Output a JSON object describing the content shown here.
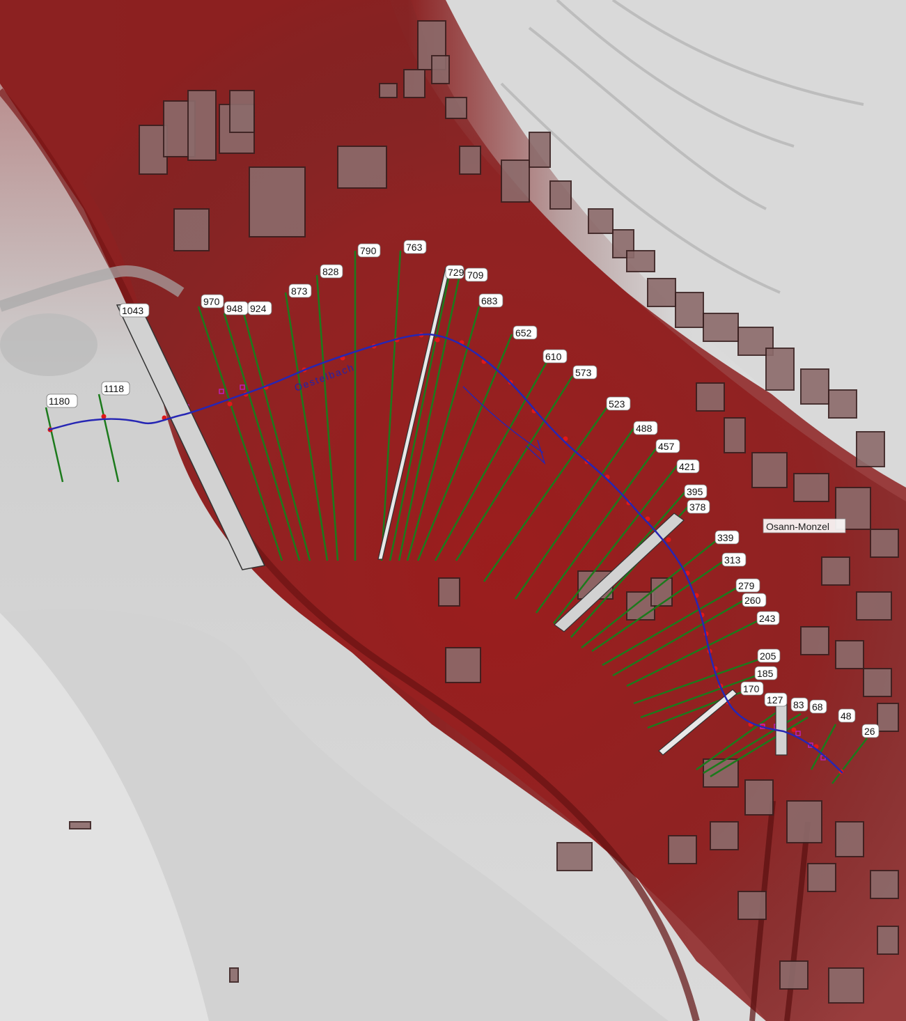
{
  "map": {
    "river_label": "Oestelbach",
    "town_label": "Osann-Monzel",
    "colors": {
      "terrain_low": "#8b1d1d",
      "terrain_high": "#e6e6e6",
      "river_line": "#2020a0",
      "cross_section_line": "#1c7a1c",
      "cross_section_point": "#e01818",
      "structure_fill": "#d0d0d0",
      "label_bg": "#ffffff"
    },
    "cross_sections": [
      {
        "station": "1180"
      },
      {
        "station": "1118"
      },
      {
        "station": "1043"
      },
      {
        "station": "970"
      },
      {
        "station": "948"
      },
      {
        "station": "924"
      },
      {
        "station": "873"
      },
      {
        "station": "828"
      },
      {
        "station": "790"
      },
      {
        "station": "763"
      },
      {
        "station": "729"
      },
      {
        "station": "709"
      },
      {
        "station": "683"
      },
      {
        "station": "652"
      },
      {
        "station": "610"
      },
      {
        "station": "573"
      },
      {
        "station": "523"
      },
      {
        "station": "488"
      },
      {
        "station": "457"
      },
      {
        "station": "421"
      },
      {
        "station": "395"
      },
      {
        "station": "378"
      },
      {
        "station": "339"
      },
      {
        "station": "313"
      },
      {
        "station": "279"
      },
      {
        "station": "260"
      },
      {
        "station": "243"
      },
      {
        "station": "205"
      },
      {
        "station": "185"
      },
      {
        "station": "170"
      },
      {
        "station": "127"
      },
      {
        "station": "83"
      },
      {
        "station": "68"
      },
      {
        "station": "48"
      },
      {
        "station": "26"
      }
    ]
  }
}
